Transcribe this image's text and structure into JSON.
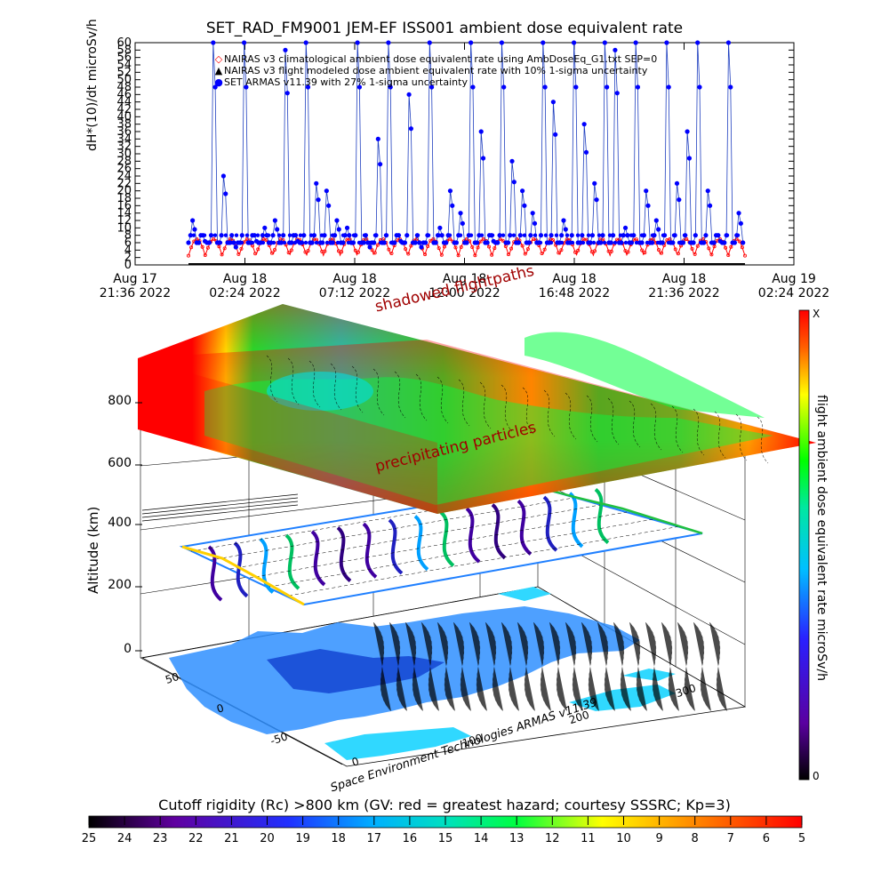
{
  "title": "SET_RAD_FM9001  JEM-EF ISS001 ambient dose equivalent rate",
  "chart_data": [
    {
      "type": "scatter",
      "ylabel": "dH*(10)/dt microSv/h",
      "ylim": [
        0,
        60
      ],
      "y_ticks": [
        0,
        2,
        4,
        6,
        8,
        10,
        12,
        14,
        16,
        18,
        20,
        22,
        24,
        26,
        28,
        30,
        32,
        34,
        36,
        38,
        40,
        42,
        44,
        46,
        48,
        50,
        52,
        54,
        56,
        58,
        60
      ],
      "x_ticks": [
        {
          "l1": "Aug 17",
          "l2": "21:36 2022"
        },
        {
          "l1": "Aug 18",
          "l2": "02:24 2022"
        },
        {
          "l1": "Aug 18",
          "l2": "07:12 2022"
        },
        {
          "l1": "Aug 18",
          "l2": "12:00 2022"
        },
        {
          "l1": "Aug 18",
          "l2": "16:48 2022"
        },
        {
          "l1": "Aug 18",
          "l2": "21:36 2022"
        },
        {
          "l1": "Aug 19",
          "l2": "02:24 2022"
        }
      ],
      "legend": [
        {
          "symbol": "◇",
          "color": "#ff0000",
          "label": "NAIRAS v3 climatological ambient dose equivalent rate using AmbDoseEq_G1.txt SEP=0"
        },
        {
          "symbol": "▲",
          "color": "#000000",
          "label": "NAIRAS v3 flight modeled dose ambient equivalent rate with 10% 1-sigma uncertainty"
        },
        {
          "symbol": "●",
          "color": "#0000ff",
          "label": "SET ARMAS v11.39 with 27% 1-sigma uncertainty"
        }
      ],
      "colors": {
        "armas": "#0000ff",
        "nairas_clim": "#ff0000",
        "nairas_flight": "#000000",
        "line": "#1f3fbf"
      },
      "series": [
        {
          "name": "SET ARMAS v11.39 with 27% 1-sigma uncertainty",
          "peaks": [
            12,
            8,
            60,
            24,
            6,
            60,
            8,
            10,
            12,
            58,
            8,
            60,
            22,
            20,
            12,
            10,
            60,
            6,
            34,
            60,
            8,
            46,
            6,
            60,
            10,
            20,
            14,
            60,
            36,
            8,
            60,
            28,
            20,
            14,
            60,
            44,
            12,
            60,
            38,
            22,
            60,
            58,
            10,
            60,
            20,
            12,
            60,
            22,
            36,
            60,
            20,
            8,
            60,
            14
          ]
        },
        {
          "name": "NAIRAS v3 climatological ambient dose equivalent rate using AmbDoseEq_G1.txt SEP=0",
          "baseline": 2.5,
          "amplitude": 4.5,
          "cycles": 33
        }
      ]
    },
    {
      "type": "heatmap",
      "labels": {
        "shadowed": "shadowed flightpaths",
        "precipitating": "precipitating particles",
        "altitude_axis": "Altitude (km)",
        "credit": "Space Environment Technologies ARMAS v11.39"
      },
      "alt_ticks": [
        "0",
        "200",
        "400",
        "600",
        "800"
      ],
      "lat_ticks": [
        "50",
        "0",
        "-50"
      ],
      "lon_ticks": [
        "0",
        "100",
        "200",
        "300"
      ],
      "colorbar_label": "flight ambient dose equivalent rate microSv/h",
      "colorbar_max": "X",
      "colorbar_min": "0"
    },
    {
      "type": "heatmap",
      "title": "Cutoff rigidity (Rc) >800 km (GV: red = greatest hazard; courtesy SSSRC; Kp=3)",
      "ticks": [
        "25",
        "24",
        "23",
        "22",
        "21",
        "20",
        "19",
        "18",
        "17",
        "16",
        "15",
        "14",
        "13",
        "12",
        "11",
        "10",
        "9",
        "8",
        "7",
        "6",
        "5"
      ]
    }
  ]
}
